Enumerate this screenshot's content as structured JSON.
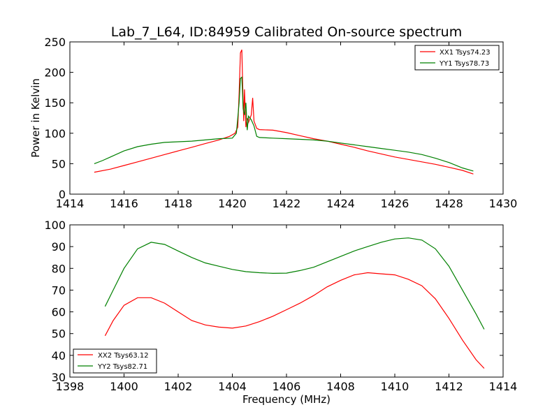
{
  "chart_data": [
    {
      "type": "line",
      "title": "Lab_7_L64, ID:84959 Calibrated On-source spectrum",
      "xlabel": "",
      "ylabel": "Power in Kelvin",
      "xlim": [
        1414,
        1430
      ],
      "ylim": [
        0,
        250
      ],
      "xticks": [
        "1414",
        "1416",
        "1418",
        "1420",
        "1422",
        "1424",
        "1426",
        "1428",
        "1430"
      ],
      "yticks": [
        "0",
        "50",
        "100",
        "150",
        "200",
        "250"
      ],
      "grid": false,
      "legend_position": "top-right",
      "series": [
        {
          "name": "XX1 Tsys74.23",
          "color": "#ff0000",
          "points": [
            [
              1414.9,
              36
            ],
            [
              1415.5,
              41
            ],
            [
              1416,
              47
            ],
            [
              1416.5,
              53
            ],
            [
              1417,
              59
            ],
            [
              1417.5,
              65
            ],
            [
              1418,
              71
            ],
            [
              1418.5,
              77
            ],
            [
              1419,
              83
            ],
            [
              1419.5,
              89
            ],
            [
              1419.9,
              95
            ],
            [
              1420.1,
              100
            ],
            [
              1420.2,
              110
            ],
            [
              1420.25,
              165
            ],
            [
              1420.3,
              232
            ],
            [
              1420.35,
              237
            ],
            [
              1420.38,
              185
            ],
            [
              1420.42,
              120
            ],
            [
              1420.45,
              172
            ],
            [
              1420.5,
              110
            ],
            [
              1420.55,
              125
            ],
            [
              1420.6,
              118
            ],
            [
              1420.7,
              130
            ],
            [
              1420.75,
              158
            ],
            [
              1420.8,
              120
            ],
            [
              1420.9,
              108
            ],
            [
              1421,
              106
            ],
            [
              1421.5,
              105
            ],
            [
              1422,
              101
            ],
            [
              1422.5,
              96
            ],
            [
              1423,
              91
            ],
            [
              1423.5,
              87
            ],
            [
              1424,
              82
            ],
            [
              1424.5,
              77
            ],
            [
              1425,
              71
            ],
            [
              1425.5,
              66
            ],
            [
              1426,
              61
            ],
            [
              1426.5,
              57
            ],
            [
              1427,
              53
            ],
            [
              1427.5,
              49
            ],
            [
              1428,
              44
            ],
            [
              1428.5,
              39
            ],
            [
              1428.9,
              33
            ]
          ]
        },
        {
          "name": "YY1 Tsys78.73",
          "color": "#008000",
          "points": [
            [
              1414.9,
              50
            ],
            [
              1415.2,
              55
            ],
            [
              1415.5,
              61
            ],
            [
              1416,
              71
            ],
            [
              1416.5,
              78
            ],
            [
              1417,
              82
            ],
            [
              1417.5,
              85
            ],
            [
              1418,
              86
            ],
            [
              1418.5,
              87
            ],
            [
              1419,
              89
            ],
            [
              1419.5,
              91
            ],
            [
              1420,
              92
            ],
            [
              1420.15,
              100
            ],
            [
              1420.25,
              150
            ],
            [
              1420.3,
              190
            ],
            [
              1420.35,
              192
            ],
            [
              1420.4,
              140
            ],
            [
              1420.45,
              130
            ],
            [
              1420.5,
              150
            ],
            [
              1420.55,
              105
            ],
            [
              1420.6,
              128
            ],
            [
              1420.7,
              122
            ],
            [
              1420.8,
              112
            ],
            [
              1420.9,
              95
            ],
            [
              1421,
              93
            ],
            [
              1421.5,
              92
            ],
            [
              1422,
              91
            ],
            [
              1422.5,
              90
            ],
            [
              1423,
              89
            ],
            [
              1423.5,
              87
            ],
            [
              1424,
              84
            ],
            [
              1424.5,
              81
            ],
            [
              1425,
              78
            ],
            [
              1425.5,
              75
            ],
            [
              1426,
              72
            ],
            [
              1426.5,
              69
            ],
            [
              1427,
              65
            ],
            [
              1427.5,
              59
            ],
            [
              1428,
              52
            ],
            [
              1428.5,
              43
            ],
            [
              1428.9,
              38
            ]
          ]
        }
      ]
    },
    {
      "type": "line",
      "title": "",
      "xlabel": "Frequency (MHz)",
      "ylabel": "",
      "xlim": [
        1398,
        1414
      ],
      "ylim": [
        30,
        100
      ],
      "xticks": [
        "1398",
        "1400",
        "1402",
        "1404",
        "1406",
        "1408",
        "1410",
        "1412",
        "1414"
      ],
      "yticks": [
        "30",
        "40",
        "50",
        "60",
        "70",
        "80",
        "90",
        "100"
      ],
      "grid": false,
      "legend_position": "bottom-left",
      "series": [
        {
          "name": "XX2 Tsys63.12",
          "color": "#ff0000",
          "points": [
            [
              1399.3,
              49
            ],
            [
              1399.6,
              56
            ],
            [
              1400,
              63
            ],
            [
              1400.5,
              66.5
            ],
            [
              1401,
              66.5
            ],
            [
              1401.5,
              64
            ],
            [
              1402,
              60
            ],
            [
              1402.5,
              56
            ],
            [
              1403,
              54
            ],
            [
              1403.5,
              53
            ],
            [
              1404,
              52.5
            ],
            [
              1404.5,
              53.5
            ],
            [
              1405,
              55.5
            ],
            [
              1405.5,
              58
            ],
            [
              1406,
              61
            ],
            [
              1406.5,
              64
            ],
            [
              1407,
              67.5
            ],
            [
              1407.5,
              71.5
            ],
            [
              1408,
              74.5
            ],
            [
              1408.5,
              77
            ],
            [
              1409,
              78
            ],
            [
              1409.5,
              77.5
            ],
            [
              1410,
              77
            ],
            [
              1410.5,
              75
            ],
            [
              1411,
              72
            ],
            [
              1411.5,
              66
            ],
            [
              1412,
              57
            ],
            [
              1412.5,
              47
            ],
            [
              1413,
              38
            ],
            [
              1413.3,
              34
            ]
          ]
        },
        {
          "name": "YY2 Tsys82.71",
          "color": "#008000",
          "points": [
            [
              1399.3,
              62.5
            ],
            [
              1399.6,
              70
            ],
            [
              1400,
              80
            ],
            [
              1400.5,
              89
            ],
            [
              1401,
              92
            ],
            [
              1401.5,
              91
            ],
            [
              1402,
              88
            ],
            [
              1402.5,
              85
            ],
            [
              1403,
              82.5
            ],
            [
              1403.5,
              81
            ],
            [
              1404,
              79.5
            ],
            [
              1404.5,
              78.5
            ],
            [
              1405,
              78
            ],
            [
              1405.5,
              77.7
            ],
            [
              1406,
              77.8
            ],
            [
              1406.5,
              79
            ],
            [
              1407,
              80.5
            ],
            [
              1407.5,
              83
            ],
            [
              1408,
              85.5
            ],
            [
              1408.5,
              88
            ],
            [
              1409,
              90
            ],
            [
              1409.5,
              92
            ],
            [
              1410,
              93.5
            ],
            [
              1410.5,
              94
            ],
            [
              1411,
              93
            ],
            [
              1411.5,
              89
            ],
            [
              1412,
              81
            ],
            [
              1412.5,
              70
            ],
            [
              1413,
              59
            ],
            [
              1413.3,
              52
            ]
          ]
        }
      ]
    }
  ]
}
